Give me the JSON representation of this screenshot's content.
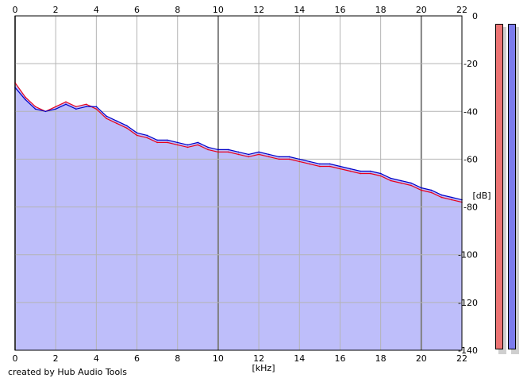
{
  "footer": {
    "credit": "created by Hub Audio Tools"
  },
  "meters": [
    {
      "name": "left-level-meter",
      "color": "#ec7474"
    },
    {
      "name": "right-level-meter",
      "color": "#7c7cec"
    }
  ],
  "colors": {
    "background_fill": "#bebefa",
    "grid": "#b4b4b4",
    "channel_1": "#e8001c",
    "channel_2": "#0000c8"
  },
  "chart_data": {
    "type": "line",
    "title": "",
    "xlabel": "[kHz]",
    "ylabel": "[dB]",
    "xlim": [
      0,
      22
    ],
    "ylim": [
      -140,
      0
    ],
    "x_ticks": [
      "0",
      "2",
      "4",
      "6",
      "8",
      "10",
      "12",
      "14",
      "16",
      "18",
      "20",
      "22"
    ],
    "y_ticks": [
      "0",
      "-20",
      "-40",
      "-60",
      "-80",
      "-100",
      "-120",
      "-140"
    ],
    "grid": true,
    "x_ticks_top_and_bottom": true,
    "series": [
      {
        "color": "#e8001c",
        "x": [
          0,
          0.5,
          1,
          1.5,
          2,
          2.5,
          3,
          3.5,
          4,
          4.5,
          5,
          5.5,
          6,
          6.5,
          7,
          7.5,
          8,
          8.5,
          9,
          9.5,
          10,
          10.5,
          11,
          11.5,
          12,
          12.5,
          13,
          13.5,
          14,
          14.5,
          15,
          15.5,
          16,
          16.5,
          17,
          17.5,
          18,
          18.5,
          19,
          19.5,
          20,
          20.5,
          21,
          21.5,
          22
        ],
        "values": [
          -28,
          -34,
          -38,
          -40,
          -38,
          -36,
          -38,
          -37,
          -39,
          -43,
          -45,
          -47,
          -50,
          -51,
          -53,
          -53,
          -54,
          -55,
          -54,
          -56,
          -57,
          -57,
          -58,
          -59,
          -58,
          -59,
          -60,
          -60,
          -61,
          -62,
          -63,
          -63,
          -64,
          -65,
          -66,
          -66,
          -67,
          -69,
          -70,
          -71,
          -73,
          -74,
          -76,
          -77,
          -78
        ]
      },
      {
        "color": "#0000c8",
        "x": [
          0,
          0.5,
          1,
          1.5,
          2,
          2.5,
          3,
          3.5,
          4,
          4.5,
          5,
          5.5,
          6,
          6.5,
          7,
          7.5,
          8,
          8.5,
          9,
          9.5,
          10,
          10.5,
          11,
          11.5,
          12,
          12.5,
          13,
          13.5,
          14,
          14.5,
          15,
          15.5,
          16,
          16.5,
          17,
          17.5,
          18,
          18.5,
          19,
          19.5,
          20,
          20.5,
          21,
          21.5,
          22
        ],
        "values": [
          -30,
          -35,
          -39,
          -40,
          -39,
          -37,
          -39,
          -38,
          -38,
          -42,
          -44,
          -46,
          -49,
          -50,
          -52,
          -52,
          -53,
          -54,
          -53,
          -55,
          -56,
          -56,
          -57,
          -58,
          -57,
          -58,
          -59,
          -59,
          -60,
          -61,
          -62,
          -62,
          -63,
          -64,
          -65,
          -65,
          -66,
          -68,
          -69,
          -70,
          -72,
          -73,
          -75,
          -76,
          -77
        ]
      }
    ],
    "fill_series": "below-envelope"
  }
}
